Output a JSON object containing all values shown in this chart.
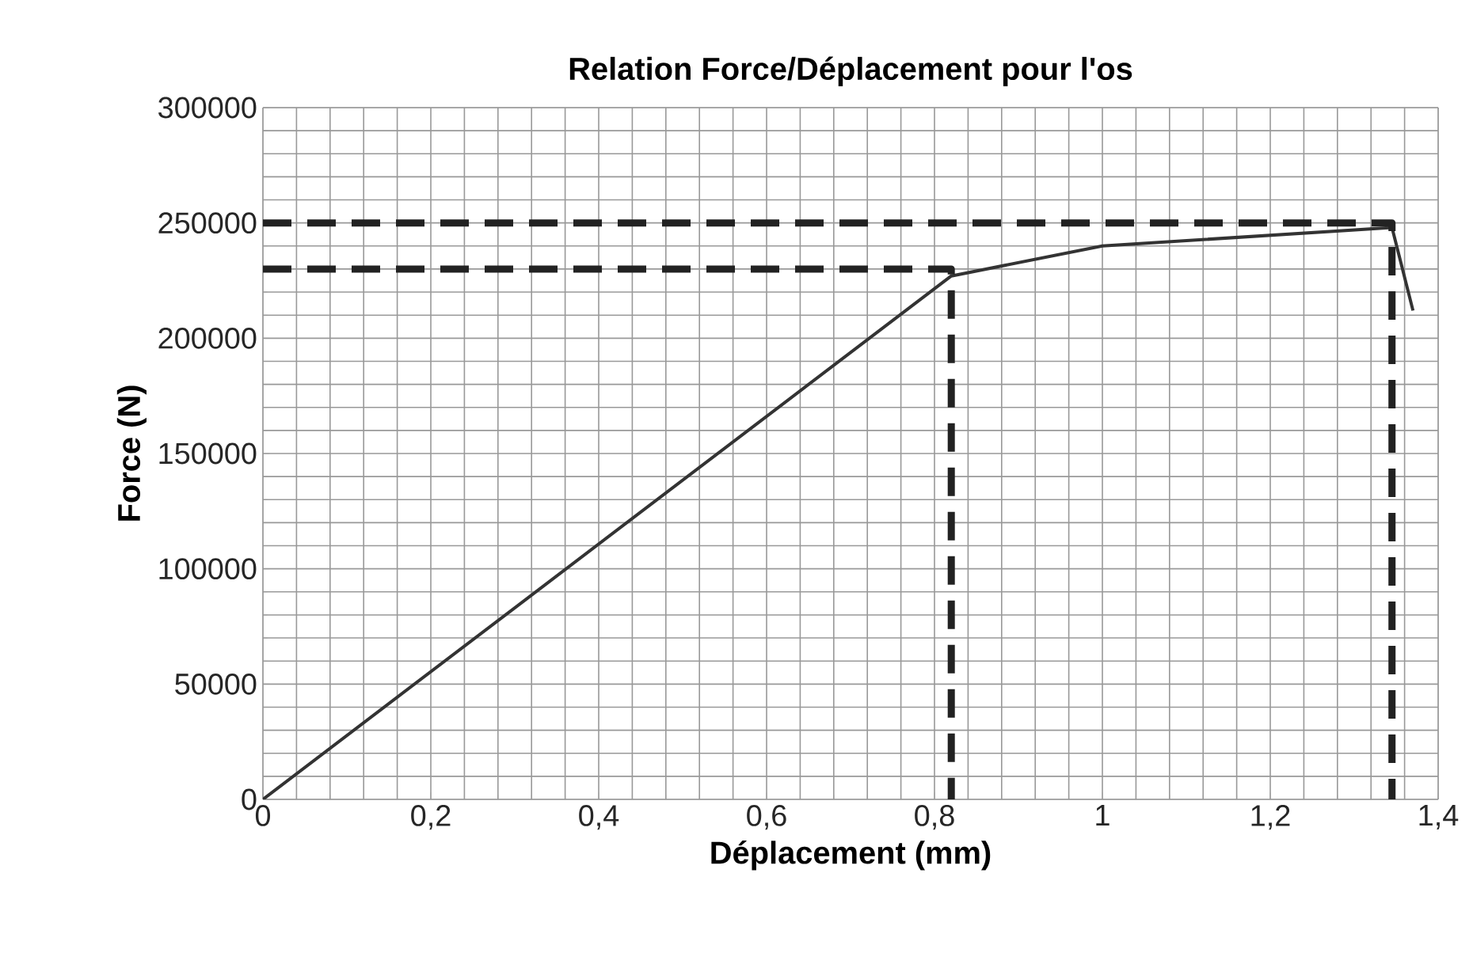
{
  "chart_data": {
    "type": "line",
    "title": "Relation Force/Déplacement pour l'os",
    "xlabel": "Déplacement (mm)",
    "ylabel": "Force (N)",
    "xlim": [
      0,
      1.4
    ],
    "ylim": [
      0,
      300000
    ],
    "xticks": [
      0,
      {
        "value": 0.2,
        "label": "0,2"
      },
      {
        "value": 0.4,
        "label": "0,4"
      },
      {
        "value": 0.6,
        "label": "0,6"
      },
      {
        "value": 0.8,
        "label": "0,8"
      },
      1,
      {
        "value": 1.2,
        "label": "1,2"
      },
      {
        "value": 1.4,
        "label": "1,4"
      }
    ],
    "yticks": [
      0,
      50000,
      100000,
      150000,
      200000,
      250000,
      300000
    ],
    "grid": true,
    "series": [
      {
        "color": "#333333",
        "line_style": "solid",
        "x": [
          0,
          0.82,
          1.0,
          1.345,
          1.37
        ],
        "values": [
          0,
          227000,
          240000,
          248000,
          212000
        ]
      },
      {
        "color": "#222222",
        "line_style": "dashed",
        "x": [
          0,
          0.82,
          0.82
        ],
        "values": [
          230000,
          230000,
          0
        ]
      },
      {
        "color": "#222222",
        "line_style": "dashed",
        "x": [
          0,
          1.345,
          1.345
        ],
        "values": [
          250000,
          250000,
          0
        ]
      }
    ]
  }
}
